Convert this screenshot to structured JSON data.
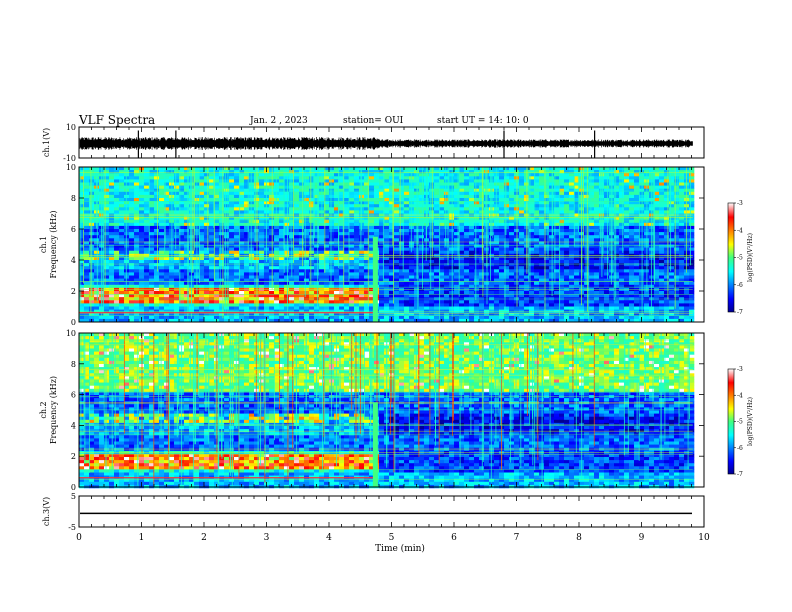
{
  "header": {
    "title": "VLF Spectra",
    "date": "Jan. 2 , 2023",
    "station": "station= OUI",
    "start": "start  UT =   14: 10: 0"
  },
  "chart_data": [
    {
      "type": "line",
      "name": "ch.1 waveform",
      "ylabel": "ch.1(V)",
      "ylim": [
        -10,
        10
      ],
      "yticks": [
        "10",
        "-10"
      ],
      "xlim": [
        0,
        10
      ],
      "signal_end_min": 9.82,
      "spikes_min": [
        0.95,
        1.55,
        6.8,
        8.25
      ]
    },
    {
      "type": "heatmap",
      "name": "ch.1 spectrogram",
      "ylabel": "ch.1\nFrequency (kHz)",
      "ylim": [
        0,
        10
      ],
      "yticks": [
        "0",
        "2",
        "4",
        "6",
        "8",
        "10"
      ],
      "xlim": [
        0,
        10
      ],
      "transition_min": 4.75,
      "data_end_min": 9.82
    },
    {
      "type": "heatmap",
      "name": "ch.2 spectrogram",
      "ylabel": "ch.2\nFrequency (kHz)",
      "ylim": [
        0,
        10
      ],
      "yticks": [
        "0",
        "2",
        "4",
        "6",
        "8",
        "10"
      ],
      "xlim": [
        0,
        10
      ],
      "transition_min": 4.75,
      "data_end_min": 9.82
    },
    {
      "type": "line",
      "name": "ch.3 waveform",
      "ylabel": "ch.3(V)",
      "ylim": [
        -5,
        5
      ],
      "yticks": [
        "5",
        "-5"
      ],
      "xlim": [
        0,
        10
      ],
      "level": -0.6,
      "xlabel": "Time  (min)",
      "xticks": [
        "0",
        "1",
        "2",
        "3",
        "4",
        "5",
        "6",
        "7",
        "8",
        "9",
        "10"
      ]
    }
  ],
  "colorbars": [
    {
      "label": "log(PSD)(V²/Hz)",
      "ticks": [
        "-3",
        "-4",
        "-5",
        "-6",
        "-7"
      ],
      "range": [
        -7,
        -3
      ]
    },
    {
      "label": "log(PSD)(V²/Hz)",
      "ticks": [
        "-3",
        "-4",
        "-5",
        "-6",
        "-7"
      ],
      "range": [
        -7,
        -3
      ]
    }
  ]
}
